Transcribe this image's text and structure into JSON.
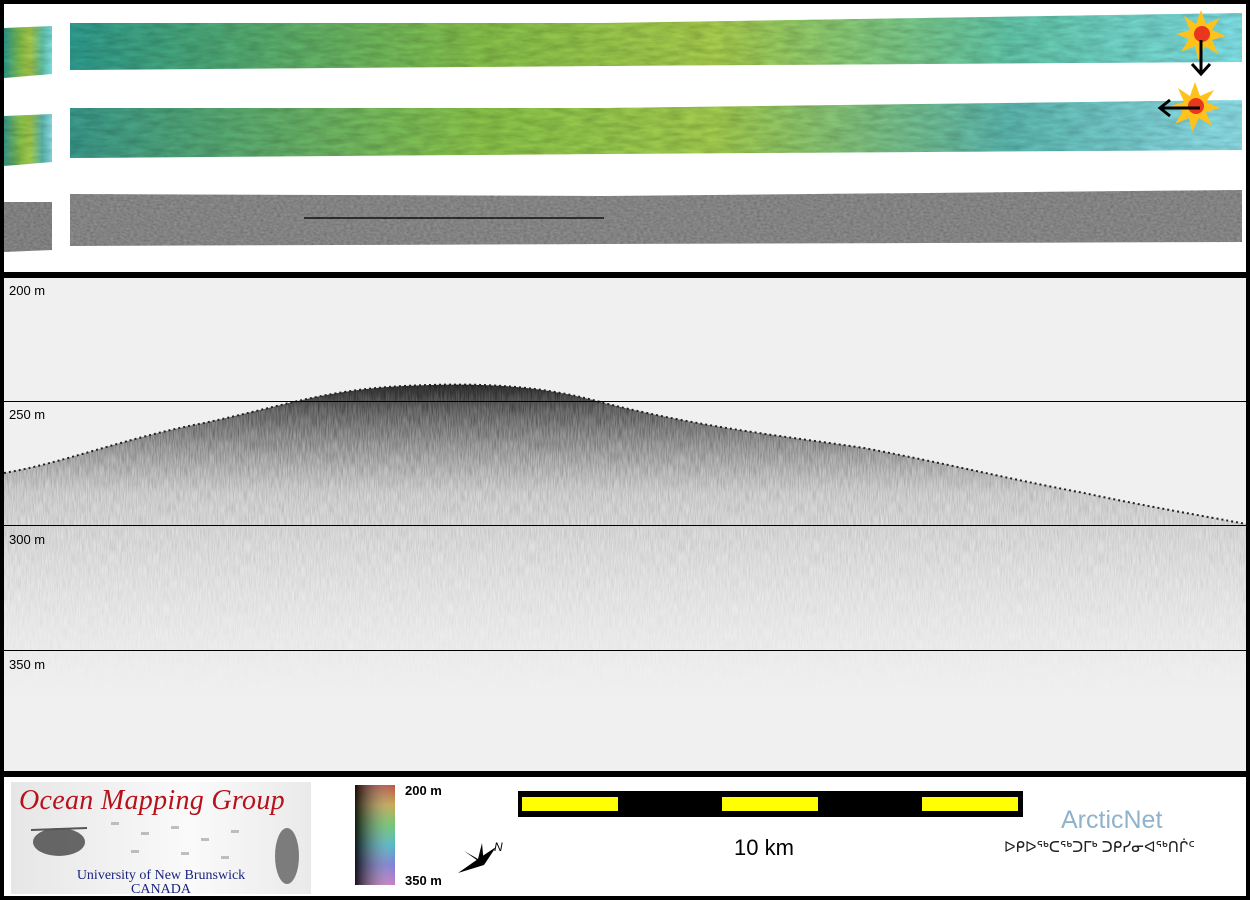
{
  "profile": {
    "depth_labels": [
      "200 m",
      "250 m",
      "300 m",
      "350 m"
    ]
  },
  "footer": {
    "logo_title": "Ocean Mapping Group",
    "logo_line1": "University of New Brunswick",
    "logo_line2": "CANADA",
    "colorbar_top": "200 m",
    "colorbar_bottom": "350 m",
    "scale_label": "10 km",
    "north_label": "N",
    "arcticnet_label": "ArcticNet",
    "inuktitut_label": "ᐅᑭᐅᖅᑕᖅᑐᒥᒃ ᑐᑭᓯᓂᐊᖅᑎᒌᑦ"
  },
  "colors": {
    "swath_left": "#2a9a8a",
    "swath_mid": "#9ccc4a",
    "swath_right": "#6ad6d8",
    "backscatter": "#8a8a8a",
    "logo_red": "#b5121b",
    "logo_blue": "#1a237e",
    "scale_yellow": "#ffff00",
    "arcticnet_blue": "#8fb3cc"
  }
}
